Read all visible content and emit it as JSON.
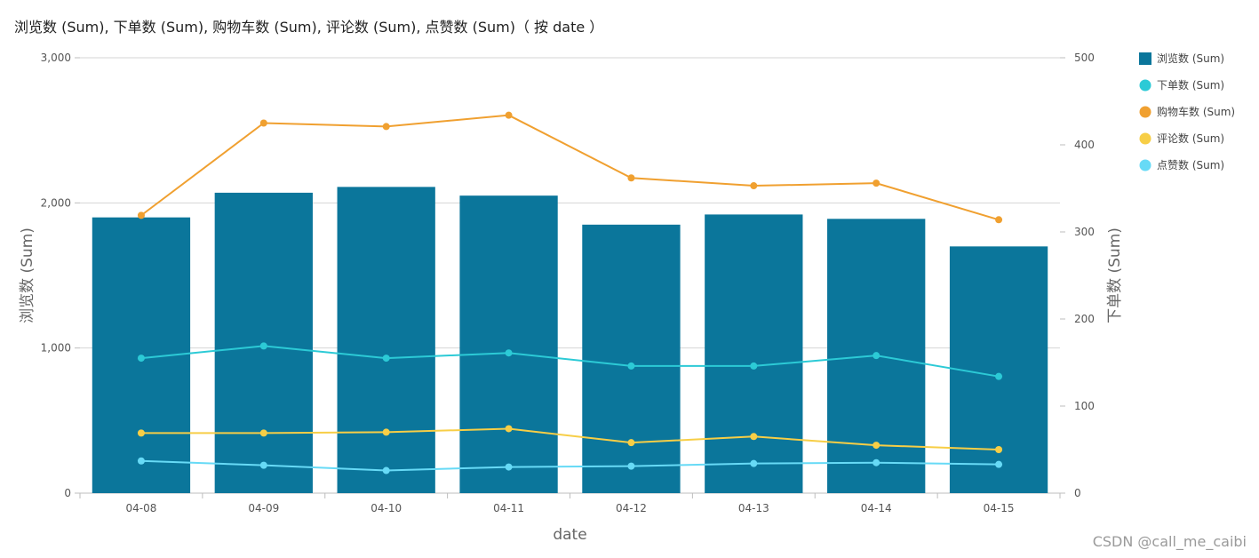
{
  "chart_data": {
    "type": "bar",
    "title": "浏览数 (Sum), 下单数 (Sum), 购物车数 (Sum), 评论数 (Sum), 点赞数 (Sum)（ 按 date ）",
    "xlabel": "date",
    "ylabel": "浏览数 (Sum)",
    "y2label": "下单数 (Sum)",
    "categories": [
      "04-08",
      "04-09",
      "04-10",
      "04-11",
      "04-12",
      "04-13",
      "04-14",
      "04-15"
    ],
    "ylim": [
      0,
      3000
    ],
    "y2lim": [
      0,
      500
    ],
    "y_ticks": [
      {
        "value": 0,
        "label": "0"
      },
      {
        "value": 1000,
        "label": "1,000"
      },
      {
        "value": 2000,
        "label": "2,000"
      },
      {
        "value": 3000,
        "label": "3,000"
      }
    ],
    "y2_ticks": [
      {
        "value": 0,
        "label": "0"
      },
      {
        "value": 100,
        "label": "100"
      },
      {
        "value": 200,
        "label": "200"
      },
      {
        "value": 300,
        "label": "300"
      },
      {
        "value": 400,
        "label": "400"
      },
      {
        "value": 500,
        "label": "500"
      }
    ],
    "grid": true,
    "legend_position": "right",
    "series": [
      {
        "name": "浏览数 (Sum)",
        "type": "bar",
        "axis": "left",
        "color": "#0b769b",
        "legend_marker": "square",
        "values": [
          1900,
          2070,
          2110,
          2050,
          1850,
          1920,
          1890,
          1700
        ]
      },
      {
        "name": "下单数 (Sum)",
        "type": "line",
        "axis": "right",
        "color": "#2ccad6",
        "legend_marker": "circle",
        "values": [
          155,
          169,
          155,
          161,
          146,
          146,
          158,
          134
        ]
      },
      {
        "name": "购物车数 (Sum)",
        "type": "line",
        "axis": "right",
        "color": "#f0a030",
        "legend_marker": "circle",
        "values": [
          319,
          425,
          421,
          434,
          362,
          353,
          356,
          314
        ]
      },
      {
        "name": "评论数 (Sum)",
        "type": "line",
        "axis": "right",
        "color": "#f7ce46",
        "legend_marker": "circle",
        "values": [
          69,
          69,
          70,
          74,
          58,
          65,
          55,
          50
        ]
      },
      {
        "name": "点赞数 (Sum)",
        "type": "line",
        "axis": "right",
        "color": "#67daf6",
        "legend_marker": "circle",
        "values": [
          37,
          32,
          26,
          30,
          31,
          34,
          35,
          33
        ]
      }
    ]
  },
  "watermark": "CSDN @call_me_caibi"
}
